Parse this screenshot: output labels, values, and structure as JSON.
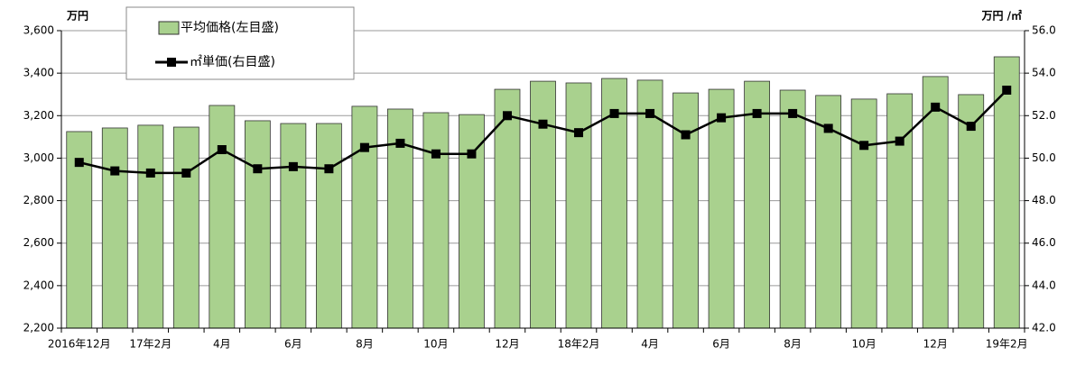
{
  "chart_data": {
    "type": "bar_line",
    "y_unit_left": "万円",
    "y_unit_right": "万円 /㎡",
    "categories": [
      "2016年12月",
      null,
      "17年2月",
      null,
      "4月",
      null,
      "6月",
      null,
      "8月",
      null,
      "10月",
      null,
      "12月",
      null,
      "18年2月",
      null,
      "4月",
      null,
      "6月",
      null,
      "8月",
      null,
      "10月",
      null,
      "12月",
      null,
      "19年2月"
    ],
    "series": [
      {
        "name": "平均価格(左目盛)",
        "color": "#a9d18e",
        "axis": "y",
        "values": [
          3125,
          3142,
          3155,
          3146,
          3248,
          3176,
          3163,
          3163,
          3244,
          3231,
          3214,
          3205,
          3324,
          3362,
          3354,
          3375,
          3367,
          3307,
          3324,
          3362,
          3320,
          3295,
          3278,
          3303,
          3384,
          3299,
          3477
        ]
      },
      {
        "name": "㎡単価(右目盛)",
        "color": "#000000",
        "axis": "y2",
        "values": [
          49.8,
          49.4,
          49.3,
          49.3,
          50.4,
          49.5,
          49.6,
          49.5,
          50.5,
          50.7,
          50.2,
          50.2,
          52.0,
          51.6,
          51.2,
          52.1,
          52.1,
          51.1,
          51.9,
          52.1,
          52.1,
          51.4,
          50.6,
          50.8,
          52.4,
          51.5,
          53.2
        ]
      }
    ],
    "ylim": [
      2200,
      3600
    ],
    "yticks": [
      {
        "value": 2200,
        "label": "2,200"
      },
      {
        "value": 2400,
        "label": "2,400"
      },
      {
        "value": 2600,
        "label": "2,600"
      },
      {
        "value": 2800,
        "label": "2,800"
      },
      {
        "value": 3000,
        "label": "3,000"
      },
      {
        "value": 3200,
        "label": "3,200"
      },
      {
        "value": 3400,
        "label": "3,400"
      },
      {
        "value": 3600,
        "label": "3,600"
      }
    ],
    "y2lim": [
      42,
      56
    ],
    "y2ticks": [
      {
        "value": 42,
        "label": "42.0"
      },
      {
        "value": 44,
        "label": "44.0"
      },
      {
        "value": 46,
        "label": "46.0"
      },
      {
        "value": 48,
        "label": "48.0"
      },
      {
        "value": 50,
        "label": "50.0"
      },
      {
        "value": 52,
        "label": "52.0"
      },
      {
        "value": 54,
        "label": "54.0"
      },
      {
        "value": 56,
        "label": "56.0"
      }
    ],
    "grid": true
  }
}
